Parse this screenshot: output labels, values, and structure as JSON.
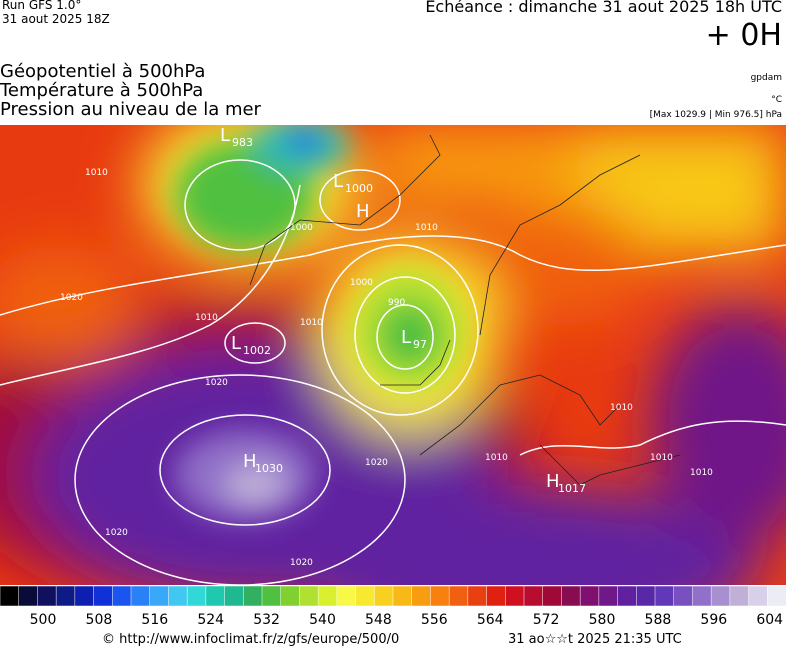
{
  "header": {
    "run": "Run GFS 1.0°",
    "run_date": "31 aout 2025 18Z",
    "echeance": "Echéance : dimanche 31 aout 2025 18h UTC",
    "offset": "+ 0H",
    "fields": [
      "Géopotentiel à 500hPa",
      "Température à 500hPa",
      "Pression au niveau de la mer"
    ],
    "unit_geopotential": "gpdam",
    "unit_temperature": "°C",
    "pressure_range": "[Max 1029.9 | Min 976.5] hPa"
  },
  "map": {
    "centers": [
      {
        "letter": "L",
        "value": "983"
      },
      {
        "letter": "L",
        "value": "1000"
      },
      {
        "letter": "H",
        "value": ""
      },
      {
        "letter": "L",
        "value": "1002"
      },
      {
        "letter": "L",
        "value": "97"
      },
      {
        "letter": "H",
        "value": "1030"
      },
      {
        "letter": "H",
        "value": "1017"
      }
    ],
    "isobar_labels": [
      "1010",
      "1020",
      "1010",
      "1000",
      "1010",
      "1010",
      "990",
      "1000",
      "1020",
      "1020",
      "1020",
      "1020",
      "1010",
      "1010",
      "1010",
      "1010"
    ]
  },
  "colorbar": {
    "colors": [
      "#000000",
      "#0b0b3a",
      "#10105e",
      "#0e1a85",
      "#0c1fb0",
      "#1030d8",
      "#1a55f0",
      "#2a80f5",
      "#3aa8f8",
      "#40c8f0",
      "#30d8d8",
      "#20c8b0",
      "#20b890",
      "#30b060",
      "#50c040",
      "#80d030",
      "#b0e030",
      "#d8f030",
      "#f8f848",
      "#f8e830",
      "#f8d020",
      "#f8b818",
      "#f89c10",
      "#f88010",
      "#f06010",
      "#e84010",
      "#e02010",
      "#d01020",
      "#b80c30",
      "#a00838",
      "#880c50",
      "#801070",
      "#701888",
      "#6020a0",
      "#5828a8",
      "#6038b8",
      "#7850c0",
      "#9070c8",
      "#a890d0",
      "#c0b0d8",
      "#d8d0e8",
      "#ececf4"
    ],
    "labels": [
      "500",
      "508",
      "516",
      "524",
      "532",
      "540",
      "548",
      "556",
      "564",
      "572",
      "580",
      "588",
      "596",
      "604"
    ]
  },
  "footer": {
    "source": "© http://www.infoclimat.fr/z/gfs/europe/500/0",
    "timestamp": "31 ao☆☆t 2025 21:35 UTC"
  }
}
